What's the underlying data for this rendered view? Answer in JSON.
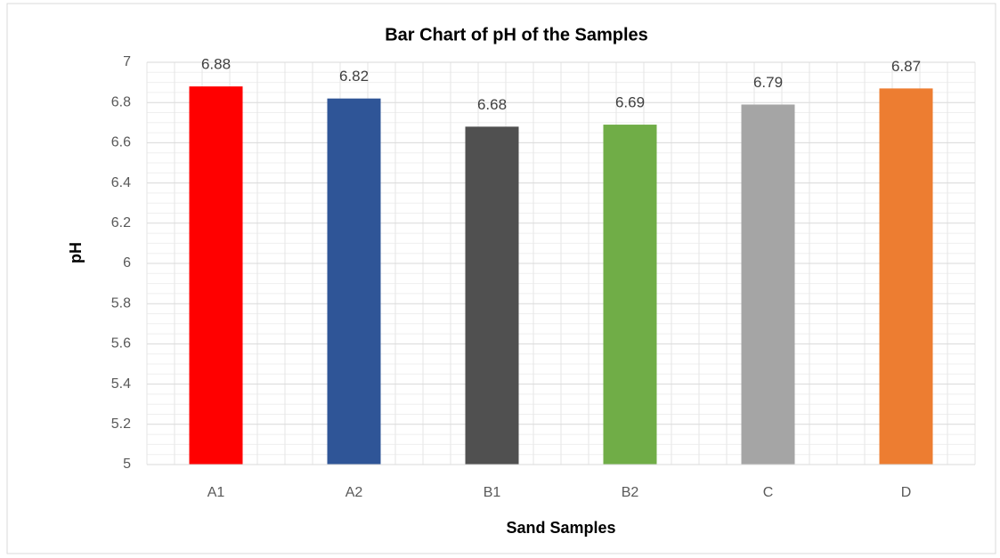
{
  "chart_data": {
    "type": "bar",
    "title": "Bar Chart of pH of the Samples",
    "x_label": "Sand Samples",
    "y_label": "pH",
    "categories": [
      "A1",
      "A2",
      "B1",
      "B2",
      "C",
      "D"
    ],
    "values": [
      6.88,
      6.82,
      6.68,
      6.69,
      6.79,
      6.87
    ],
    "colors": [
      "#ff0000",
      "#2f5597",
      "#505050",
      "#70ad47",
      "#a5a5a5",
      "#ed7d31"
    ],
    "ylim": [
      5,
      7
    ],
    "yticks": [
      5,
      5.2,
      5.4,
      5.6,
      5.8,
      6,
      6.2,
      6.4,
      6.6,
      6.8,
      7
    ],
    "grid": true,
    "minor_grid": true
  }
}
